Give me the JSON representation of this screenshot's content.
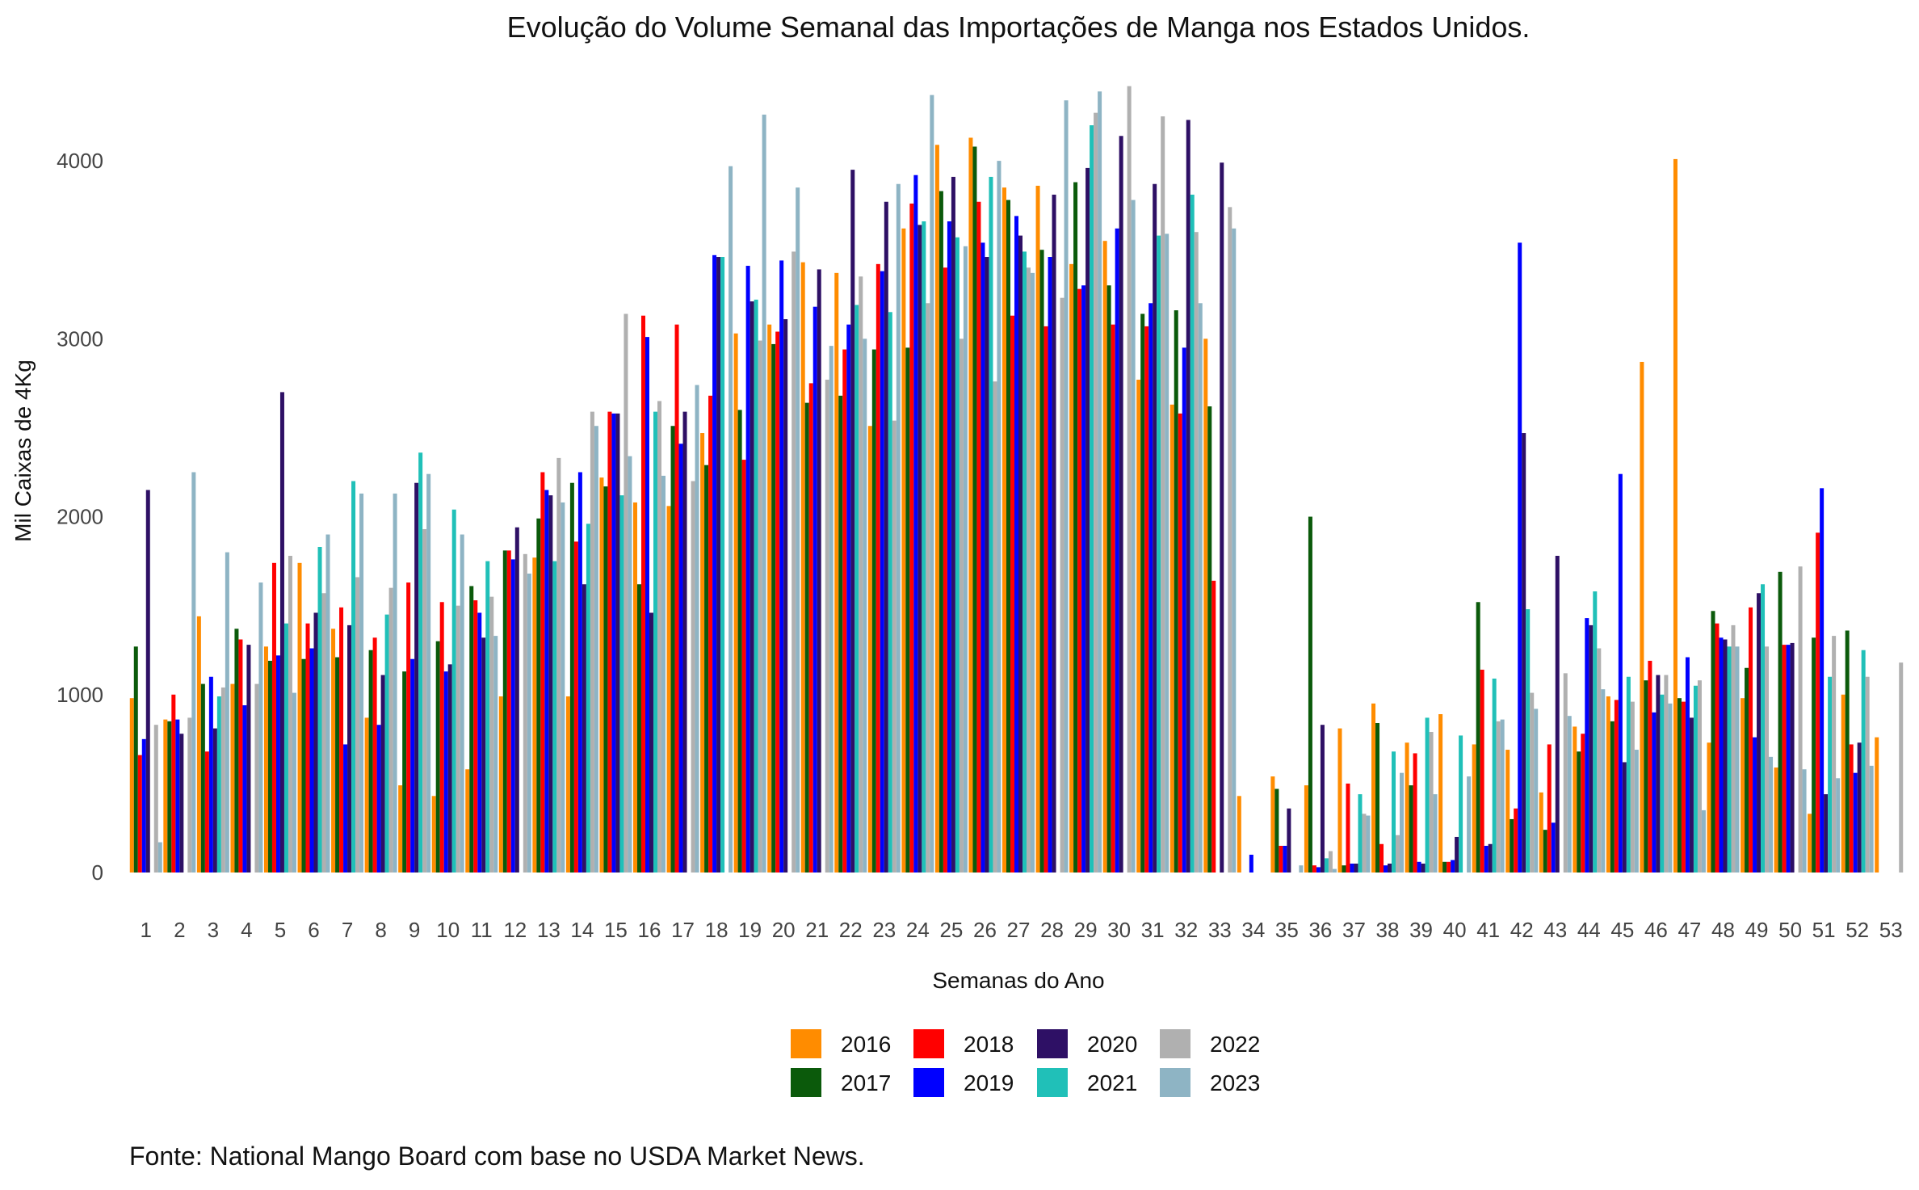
{
  "chart_data": {
    "type": "bar",
    "title": "Evolução do Volume Semanal das Importações de Manga nos Estados Unidos.",
    "xlabel": "Semanas do Ano",
    "ylabel": "Mil Caixas de 4Kg",
    "caption": "Fonte: National Mango Board com base no USDA Market News.",
    "ylim": [
      0,
      4450
    ],
    "yticks": [
      0,
      1000,
      2000,
      3000,
      4000
    ],
    "grid": false,
    "legend_position": "bottom",
    "categories": [
      "1",
      "2",
      "3",
      "4",
      "5",
      "6",
      "7",
      "8",
      "9",
      "10",
      "11",
      "12",
      "13",
      "14",
      "15",
      "16",
      "17",
      "18",
      "19",
      "20",
      "21",
      "22",
      "23",
      "24",
      "25",
      "26",
      "27",
      "28",
      "29",
      "30",
      "31",
      "32",
      "33",
      "34",
      "35",
      "36",
      "37",
      "38",
      "39",
      "40",
      "41",
      "42",
      "43",
      "44",
      "45",
      "46",
      "47",
      "48",
      "49",
      "50",
      "51",
      "52",
      "53"
    ],
    "series": [
      {
        "name": "2016",
        "color": "#FF8C00",
        "values": [
          980,
          860,
          1440,
          1060,
          1270,
          1740,
          1370,
          870,
          490,
          430,
          580,
          990,
          1770,
          990,
          2220,
          2080,
          2060,
          2470,
          3030,
          3080,
          3430,
          3370,
          2510,
          3620,
          4090,
          4130,
          3850,
          3860,
          3420,
          3550,
          2770,
          2630,
          3000,
          430,
          540,
          490,
          810,
          950,
          730,
          890,
          720,
          690,
          450,
          820,
          990,
          2870,
          4010,
          730,
          980,
          590,
          330,
          1000,
          760
        ]
      },
      {
        "name": "2017",
        "color": "#0B5A0B",
        "values": [
          1270,
          850,
          1060,
          1370,
          1190,
          1200,
          1210,
          1250,
          1130,
          1300,
          1610,
          1810,
          1990,
          2190,
          2170,
          1620,
          2510,
          2290,
          2600,
          2970,
          2640,
          2680,
          2940,
          2950,
          3830,
          4080,
          3780,
          3500,
          3880,
          3300,
          3140,
          3160,
          2620,
          0,
          470,
          2000,
          40,
          840,
          490,
          60,
          1520,
          300,
          240,
          680,
          850,
          1080,
          980,
          1470,
          1150,
          1690,
          1320,
          1360,
          0
        ]
      },
      {
        "name": "2018",
        "color": "#FF0000",
        "values": [
          660,
          1000,
          680,
          1310,
          1740,
          1400,
          1490,
          1320,
          1630,
          1520,
          1530,
          1810,
          2250,
          1860,
          2590,
          3130,
          3080,
          2680,
          2320,
          3040,
          2750,
          2940,
          3420,
          3760,
          3400,
          3770,
          3130,
          3070,
          3280,
          3080,
          3070,
          2580,
          1640,
          0,
          150,
          40,
          500,
          160,
          670,
          60,
          1140,
          360,
          720,
          780,
          970,
          1190,
          960,
          1400,
          1490,
          1280,
          1910,
          720,
          0
        ]
      },
      {
        "name": "2019",
        "color": "#0000FF",
        "values": [
          750,
          860,
          1100,
          940,
          1220,
          1260,
          720,
          830,
          1200,
          1130,
          1460,
          1760,
          2150,
          2250,
          2580,
          3010,
          2410,
          3470,
          3410,
          3440,
          3180,
          3080,
          3380,
          3920,
          3660,
          3540,
          3690,
          3460,
          3300,
          3620,
          3200,
          2950,
          0,
          100,
          150,
          30,
          50,
          40,
          60,
          70,
          150,
          3540,
          280,
          1430,
          2240,
          900,
          1210,
          1320,
          760,
          1280,
          2160,
          560,
          0
        ]
      },
      {
        "name": "2020",
        "color": "#2E1065",
        "values": [
          2150,
          780,
          810,
          1280,
          2700,
          1460,
          1390,
          1110,
          2190,
          1170,
          1320,
          1940,
          2120,
          1620,
          2580,
          1460,
          2590,
          3460,
          3210,
          3110,
          3390,
          3950,
          3770,
          3640,
          3910,
          3460,
          3580,
          3810,
          3960,
          4140,
          3870,
          4230,
          3990,
          0,
          360,
          830,
          50,
          50,
          50,
          200,
          160,
          2470,
          1780,
          1390,
          620,
          1110,
          870,
          1310,
          1570,
          1290,
          440,
          730,
          0
        ]
      },
      {
        "name": "2021",
        "color": "#20C0B8",
        "values": [
          0,
          0,
          990,
          0,
          1400,
          1830,
          2200,
          1450,
          2360,
          2040,
          1750,
          0,
          1750,
          1960,
          2120,
          2590,
          0,
          3460,
          3220,
          0,
          0,
          3190,
          3150,
          3660,
          3570,
          3910,
          3490,
          0,
          4200,
          0,
          3580,
          3810,
          0,
          0,
          0,
          80,
          440,
          680,
          870,
          770,
          1090,
          1480,
          0,
          1580,
          1100,
          1000,
          1050,
          1270,
          1620,
          0,
          1100,
          1250,
          0
        ]
      },
      {
        "name": "2022",
        "color": "#B0B0B0",
        "values": [
          830,
          870,
          1040,
          1060,
          1780,
          1570,
          1660,
          1600,
          1930,
          1500,
          1550,
          1790,
          2330,
          2590,
          3140,
          2650,
          2200,
          0,
          2990,
          3490,
          2770,
          3350,
          2540,
          3200,
          3000,
          2760,
          3400,
          3230,
          4270,
          4420,
          4250,
          3600,
          3740,
          0,
          0,
          120,
          330,
          210,
          790,
          0,
          850,
          1010,
          1120,
          1260,
          960,
          1110,
          1080,
          1390,
          1270,
          1720,
          1330,
          1100,
          1180
        ]
      },
      {
        "name": "2023",
        "color": "#8EB4C4",
        "values": [
          170,
          2250,
          1800,
          1630,
          1010,
          1900,
          2130,
          2130,
          2240,
          1900,
          1330,
          1680,
          2080,
          2510,
          2340,
          2230,
          2740,
          3970,
          4260,
          3850,
          2960,
          3000,
          3870,
          4370,
          3520,
          4000,
          3370,
          4340,
          4390,
          3780,
          3590,
          3200,
          3620,
          0,
          40,
          20,
          320,
          560,
          440,
          540,
          860,
          920,
          880,
          1030,
          690,
          950,
          350,
          1270,
          650,
          580,
          530,
          600,
          0
        ]
      }
    ]
  }
}
